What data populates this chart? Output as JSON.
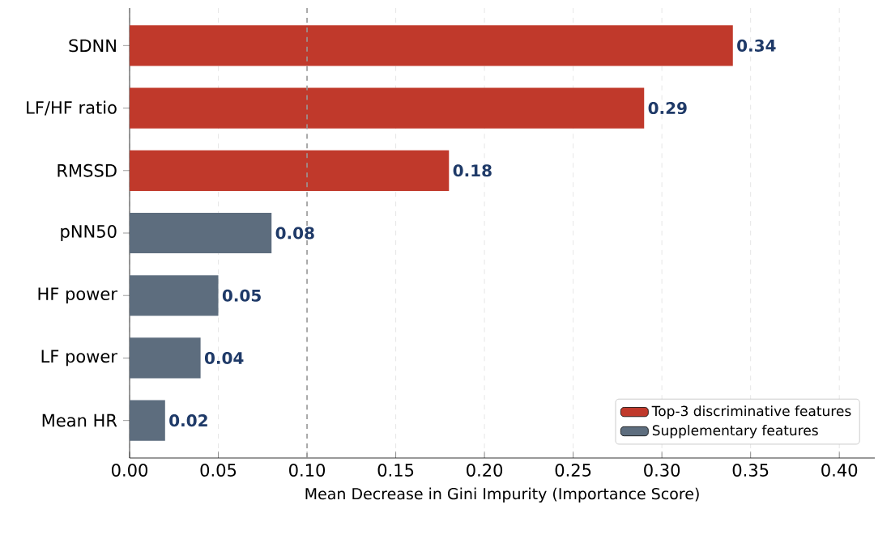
{
  "chart_data": {
    "type": "bar",
    "orientation": "horizontal",
    "xlabel": "Mean Decrease in Gini Impurity (Importance Score)",
    "categories": [
      "SDNN",
      "LF/HF ratio",
      "RMSSD",
      "pNN50",
      "HF power",
      "LF power",
      "Mean HR"
    ],
    "series": [
      {
        "name": "Top-3 discriminative features",
        "color": "#c0392b",
        "values": [
          0.34,
          0.29,
          0.18,
          null,
          null,
          null,
          null
        ]
      },
      {
        "name": "Supplementary features",
        "color": "#5d6d7e",
        "values": [
          null,
          null,
          null,
          0.08,
          0.05,
          0.04,
          0.02
        ]
      }
    ],
    "xlim": [
      0,
      0.42
    ],
    "xticks": [
      {
        "value": 0,
        "label": "0.00"
      },
      {
        "value": 0.05,
        "label": "0.05"
      },
      {
        "value": 0.1,
        "label": "0.10"
      },
      {
        "value": 0.15,
        "label": "0.15"
      },
      {
        "value": 0.2,
        "label": "0.20"
      },
      {
        "value": 0.25,
        "label": "0.25"
      },
      {
        "value": 0.3,
        "label": "0.30"
      },
      {
        "value": 0.35,
        "label": "0.35"
      },
      {
        "value": 0.4,
        "label": "0.40"
      }
    ],
    "grid": "x",
    "ref_lines": [
      {
        "axis": "x",
        "value": 0.1,
        "color": "#999999",
        "line_style": "dashed"
      }
    ],
    "data_labels": true,
    "legend": "bottom right"
  }
}
